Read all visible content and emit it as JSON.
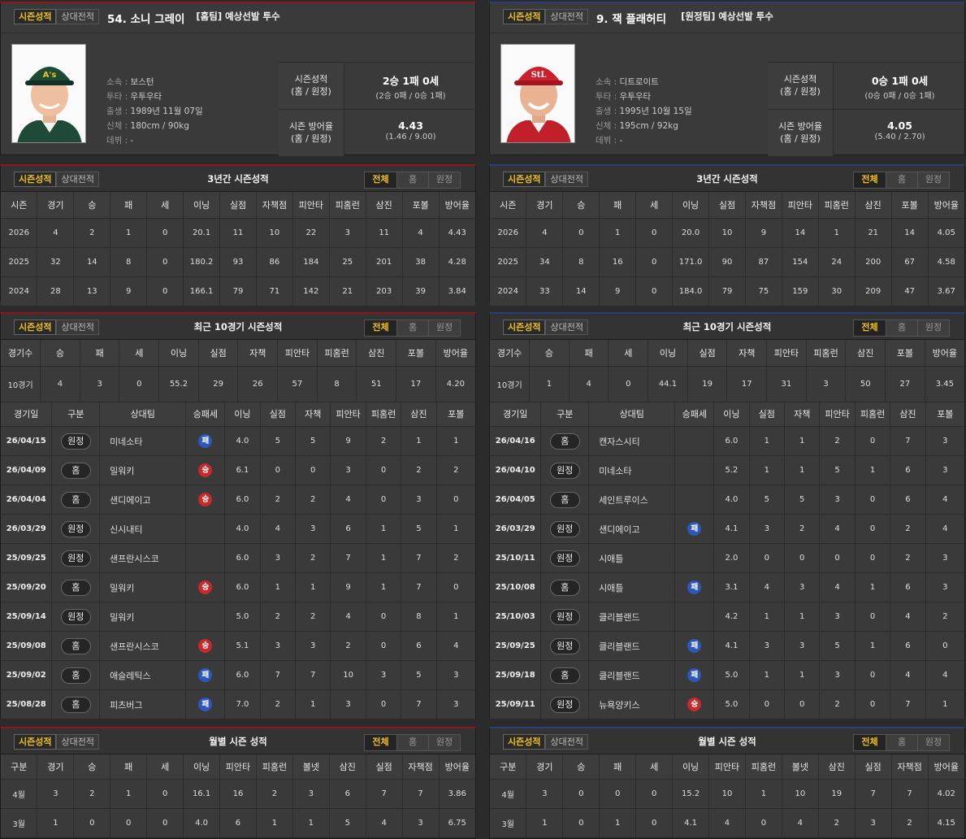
{
  "tabs": {
    "stats": "시즌성적",
    "h2h": "상대전적"
  },
  "seg": {
    "all": "전체",
    "home": "홈",
    "away": "원정"
  },
  "cols": {
    "season": [
      "시즌",
      "경기",
      "승",
      "패",
      "세",
      "이닝",
      "실점",
      "자책점",
      "피안타",
      "피홈런",
      "삼진",
      "포볼",
      "방어율"
    ],
    "recent": [
      "경기수",
      "승",
      "패",
      "세",
      "이닝",
      "실점",
      "자책",
      "피안타",
      "피홈런",
      "삼진",
      "포볼",
      "방어율"
    ],
    "games": [
      "경기일",
      "구분",
      "상대팀",
      "승패세",
      "이닝",
      "실점",
      "자책",
      "피안타",
      "피홈런",
      "삼진",
      "포볼"
    ],
    "monthly": [
      "구분",
      "경기",
      "승",
      "패",
      "세",
      "이닝",
      "피안타",
      "피홈런",
      "볼넷",
      "삼진",
      "실점",
      "자책점",
      "방어율"
    ]
  },
  "left": {
    "header": "[홈팀] 예상선발 투수",
    "name": "54. 소니 그레이",
    "info": {
      "team_label": "소속 :",
      "team": "보스턴",
      "throw_label": "투타 :",
      "throw": "우투우타",
      "birth_label": "출생 :",
      "birth": "1989년 11월 07일",
      "body_label": "신체 :",
      "body": "180cm / 90kg",
      "debut_label": "데뷔 :",
      "debut": "-"
    },
    "record": {
      "k1": "시즌성적",
      "k2": "(홈 / 원정)",
      "v": "2승 1패 0세",
      "s": "(2승 0패 / 0승 1패)"
    },
    "era": {
      "k1": "시즌 방어율",
      "k2": "(홈 / 원정)",
      "v": "4.43",
      "s": "(1.46 / 9.00)"
    },
    "season_title": "3년간 시즌성적",
    "season": [
      [
        "2026",
        "4",
        "2",
        "1",
        "0",
        "20.1",
        "11",
        "10",
        "22",
        "3",
        "11",
        "4",
        "4.43"
      ],
      [
        "2025",
        "32",
        "14",
        "8",
        "0",
        "180.2",
        "93",
        "86",
        "184",
        "25",
        "201",
        "38",
        "4.28"
      ],
      [
        "2024",
        "28",
        "13",
        "9",
        "0",
        "166.1",
        "79",
        "71",
        "142",
        "21",
        "203",
        "39",
        "3.84"
      ]
    ],
    "recent_title": "최근 10경기 시즌성적",
    "recent": [
      "10경기",
      "4",
      "3",
      "0",
      "55.2",
      "29",
      "26",
      "57",
      "8",
      "51",
      "17",
      "4.20"
    ],
    "games": [
      [
        "26/04/15",
        "원정",
        "미네소타",
        "패",
        "4.0",
        "5",
        "5",
        "9",
        "2",
        "1",
        "1"
      ],
      [
        "26/04/09",
        "홈",
        "밀워키",
        "승",
        "6.1",
        "0",
        "0",
        "3",
        "0",
        "2",
        "2"
      ],
      [
        "26/04/04",
        "홈",
        "샌디에이고",
        "승",
        "6.0",
        "2",
        "2",
        "4",
        "0",
        "3",
        "0"
      ],
      [
        "26/03/29",
        "원정",
        "신시내티",
        "",
        "4.0",
        "4",
        "3",
        "6",
        "1",
        "5",
        "1"
      ],
      [
        "25/09/25",
        "원정",
        "샌프란시스코",
        "",
        "6.0",
        "3",
        "2",
        "7",
        "1",
        "7",
        "2"
      ],
      [
        "25/09/20",
        "홈",
        "밀워키",
        "승",
        "6.0",
        "1",
        "1",
        "9",
        "1",
        "7",
        "0"
      ],
      [
        "25/09/14",
        "원정",
        "밀워키",
        "",
        "5.0",
        "2",
        "2",
        "4",
        "0",
        "8",
        "1"
      ],
      [
        "25/09/08",
        "홈",
        "샌프란시스코",
        "승",
        "5.1",
        "3",
        "3",
        "2",
        "0",
        "6",
        "4"
      ],
      [
        "25/09/02",
        "홈",
        "애슬레틱스",
        "패",
        "6.0",
        "7",
        "7",
        "10",
        "3",
        "5",
        "3"
      ],
      [
        "25/08/28",
        "홈",
        "피츠버그",
        "패",
        "7.0",
        "2",
        "1",
        "3",
        "0",
        "7",
        "3"
      ]
    ],
    "monthly_title": "월별 시즌 성적",
    "monthly": [
      [
        "4월",
        "3",
        "2",
        "1",
        "0",
        "16.1",
        "16",
        "2",
        "3",
        "6",
        "7",
        "7",
        "3.86"
      ],
      [
        "3월",
        "1",
        "0",
        "0",
        "0",
        "4.0",
        "6",
        "1",
        "1",
        "5",
        "4",
        "3",
        "6.75"
      ]
    ]
  },
  "right": {
    "header": "[원정팀] 예상선발 투수",
    "name": "9. 잭 플래허티",
    "info": {
      "team_label": "소속 :",
      "team": "디트로이트",
      "throw_label": "투타 :",
      "throw": "우투우타",
      "birth_label": "출생 :",
      "birth": "1995년 10월 15일",
      "body_label": "신체 :",
      "body": "195cm / 92kg",
      "debut_label": "데뷔 :",
      "debut": "-"
    },
    "record": {
      "k1": "시즌성적",
      "k2": "(홈 / 원정)",
      "v": "0승 1패 0세",
      "s": "(0승 0패 / 0승 1패)"
    },
    "era": {
      "k1": "시즌 방어율",
      "k2": "(홈 / 원정)",
      "v": "4.05",
      "s": "(5.40 / 2.70)"
    },
    "season_title": "3년간 시즌성적",
    "season": [
      [
        "2026",
        "4",
        "0",
        "1",
        "0",
        "20.0",
        "10",
        "9",
        "14",
        "1",
        "21",
        "14",
        "4.05"
      ],
      [
        "2025",
        "34",
        "8",
        "16",
        "0",
        "171.0",
        "90",
        "87",
        "154",
        "24",
        "200",
        "67",
        "4.58"
      ],
      [
        "2024",
        "33",
        "14",
        "9",
        "0",
        "184.0",
        "79",
        "75",
        "159",
        "30",
        "209",
        "47",
        "3.67"
      ]
    ],
    "recent_title": "최근 10경기 시즌성적",
    "recent": [
      "10경기",
      "1",
      "4",
      "0",
      "44.1",
      "19",
      "17",
      "31",
      "3",
      "50",
      "27",
      "3.45"
    ],
    "games": [
      [
        "26/04/16",
        "홈",
        "캔자스시티",
        "",
        "6.0",
        "1",
        "1",
        "2",
        "0",
        "7",
        "3"
      ],
      [
        "26/04/10",
        "원정",
        "미네소타",
        "",
        "5.2",
        "1",
        "1",
        "5",
        "1",
        "6",
        "3"
      ],
      [
        "26/04/05",
        "홈",
        "세인트루이스",
        "",
        "4.0",
        "5",
        "5",
        "3",
        "0",
        "6",
        "4"
      ],
      [
        "26/03/29",
        "원정",
        "샌디에이고",
        "패",
        "4.1",
        "3",
        "2",
        "4",
        "0",
        "2",
        "4"
      ],
      [
        "25/10/11",
        "원정",
        "시애틀",
        "",
        "2.0",
        "0",
        "0",
        "0",
        "0",
        "2",
        "3"
      ],
      [
        "25/10/08",
        "홈",
        "시애틀",
        "패",
        "3.1",
        "4",
        "3",
        "4",
        "1",
        "6",
        "3"
      ],
      [
        "25/10/03",
        "원정",
        "클리블랜드",
        "",
        "4.2",
        "1",
        "1",
        "3",
        "0",
        "4",
        "2"
      ],
      [
        "25/09/25",
        "원정",
        "클리블랜드",
        "패",
        "4.1",
        "3",
        "3",
        "5",
        "1",
        "6",
        "0"
      ],
      [
        "25/09/18",
        "홈",
        "클리블랜드",
        "패",
        "5.0",
        "1",
        "1",
        "3",
        "0",
        "4",
        "4"
      ],
      [
        "25/09/11",
        "원정",
        "뉴욕양키스",
        "승",
        "5.0",
        "0",
        "0",
        "2",
        "0",
        "7",
        "1"
      ]
    ],
    "monthly_title": "월별 시즌 성적",
    "monthly": [
      [
        "4월",
        "3",
        "0",
        "0",
        "0",
        "15.2",
        "10",
        "1",
        "10",
        "19",
        "7",
        "7",
        "4.02"
      ],
      [
        "3월",
        "1",
        "0",
        "1",
        "0",
        "4.1",
        "4",
        "0",
        "4",
        "2",
        "3",
        "2",
        "4.15"
      ]
    ]
  }
}
